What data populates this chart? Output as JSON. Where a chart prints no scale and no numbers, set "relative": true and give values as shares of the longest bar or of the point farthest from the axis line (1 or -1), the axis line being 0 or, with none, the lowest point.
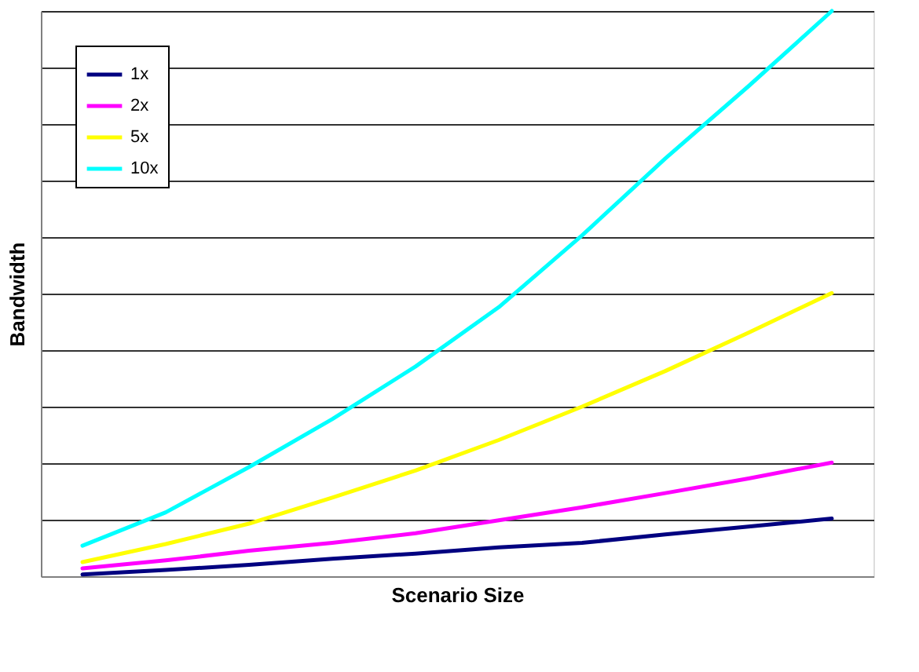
{
  "chart_data": {
    "type": "line",
    "xlabel": "Scenario Size",
    "ylabel": "Bandwidth",
    "relative": true,
    "grid": "y",
    "legend": "top left",
    "marker": "none",
    "line_style": "solid",
    "categories": [
      null,
      null,
      null,
      null,
      null,
      null,
      null,
      null,
      null,
      null
    ],
    "series": [
      {
        "name": "1x",
        "color": "#000080",
        "values": [
          0.003,
          0.011,
          0.02,
          0.031,
          0.04,
          0.051,
          0.059,
          0.074,
          0.088,
          0.102
        ]
      },
      {
        "name": "2x",
        "color": "#ff00ff",
        "values": [
          0.014,
          0.028,
          0.045,
          0.059,
          0.076,
          0.099,
          0.122,
          0.147,
          0.173,
          0.201
        ]
      },
      {
        "name": "5x",
        "color": "#ffff00",
        "values": [
          0.025,
          0.057,
          0.093,
          0.139,
          0.187,
          0.241,
          0.3,
          0.363,
          0.431,
          0.501
        ]
      },
      {
        "name": "10x",
        "color": "#00ffff",
        "values": [
          0.054,
          0.113,
          0.193,
          0.278,
          0.371,
          0.476,
          0.603,
          0.739,
          0.867,
          1.0
        ]
      }
    ]
  }
}
